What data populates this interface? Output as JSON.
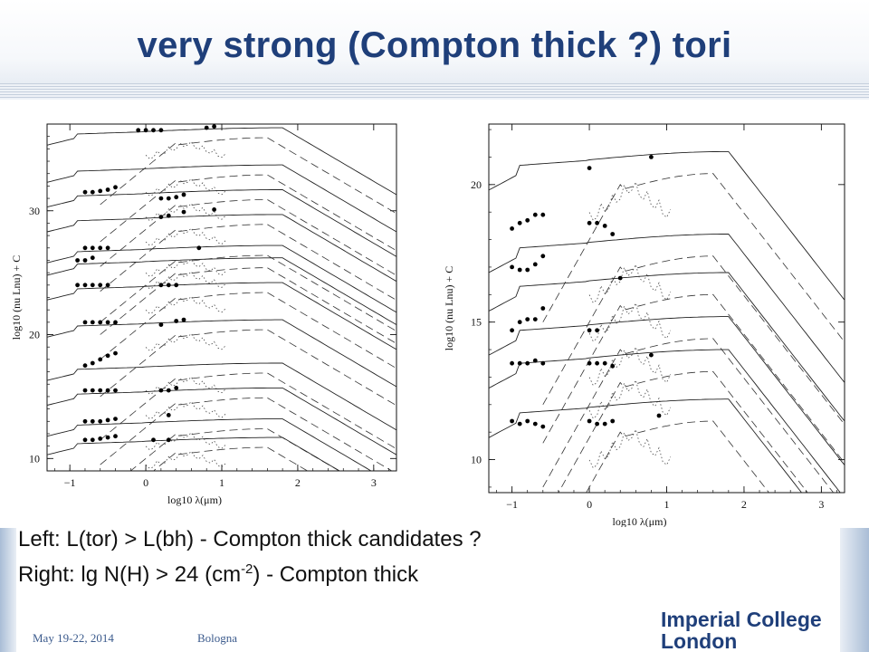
{
  "title": "very strong (Compton thick ?) tori",
  "caption": {
    "left_prefix": "Left: L(tor) > L(bh) - Compton thick candidates ?",
    "right_prefix": "Right: lg N(H) > 24 (cm",
    "right_exp": "-2",
    "right_suffix": ") - Compton thick"
  },
  "footer": {
    "date": "May 19-22, 2014",
    "place": "Bologna"
  },
  "logo": {
    "line1": "Imperial College",
    "line2": "London"
  },
  "colors": {
    "title": "#1f3f7a",
    "logo": "#1f3f7a",
    "footer": "#3b5a8c"
  },
  "chart_data": [
    {
      "type": "line",
      "panel": "left",
      "xlabel": "log10 λ(μm)",
      "ylabel": "log10 (nu Lnu) + C",
      "xlim": [
        -1.3,
        3.3
      ],
      "ylim": [
        9,
        37
      ],
      "xticks": [
        "-1",
        "0",
        "1",
        "2",
        "3"
      ],
      "yticks": [
        "10",
        "20",
        "30"
      ],
      "series_offsets": [
        36.5,
        33.5,
        31.5,
        29.5,
        27,
        26,
        24,
        21,
        17.5,
        15.5,
        13,
        11.5
      ],
      "photometry": [
        {
          "x": [
            -0.1,
            0.0,
            0.1,
            0.2,
            0.8,
            0.9
          ],
          "dy": [
            0,
            0,
            0,
            0,
            0.2,
            0.3
          ]
        },
        {
          "x": [
            0.2,
            0.3,
            0.4,
            0.5
          ],
          "dy": [
            -2.5,
            -2.5,
            -2.4,
            -2.2
          ]
        },
        {
          "x": [
            -0.8,
            -0.7,
            -0.6,
            -0.5,
            -0.4
          ],
          "dy": [
            0,
            0,
            0.1,
            0.2,
            0.4
          ]
        },
        {
          "x": [
            0.2,
            0.3,
            0.5,
            0.9
          ],
          "dy": [
            0,
            0.1,
            0.4,
            0.6
          ]
        },
        {
          "x": [
            -0.8,
            -0.7,
            -0.6,
            -0.5,
            0.7
          ],
          "dy": [
            0,
            0,
            0,
            0,
            0
          ]
        },
        {
          "x": [
            -0.9,
            -0.8,
            -0.7
          ],
          "dy": [
            0,
            0,
            0.2
          ]
        },
        {
          "x": [
            -0.9,
            -0.8,
            -0.7,
            -0.6,
            -0.5,
            0.2,
            0.3,
            0.4
          ],
          "dy": [
            0,
            0,
            0,
            0,
            0,
            0,
            0,
            0
          ]
        },
        {
          "x": [
            -0.8,
            -0.7,
            -0.6,
            -0.5,
            -0.4,
            0.2,
            0.4,
            0.5
          ],
          "dy": [
            0,
            0,
            0,
            0,
            0,
            -0.2,
            0.1,
            0.2
          ]
        },
        {
          "x": [
            -0.8,
            -0.7,
            -0.6,
            -0.5,
            -0.4
          ],
          "dy": [
            0,
            0.2,
            0.5,
            0.8,
            1.0
          ]
        },
        {
          "x": [
            -0.8,
            -0.7,
            -0.6,
            -0.5,
            -0.4,
            0.2,
            0.3,
            0.4
          ],
          "dy": [
            0,
            0,
            0,
            0,
            0,
            0,
            0,
            0.2
          ]
        },
        {
          "x": [
            -0.8,
            -0.7,
            -0.6,
            -0.5,
            -0.4,
            0.3
          ],
          "dy": [
            0,
            0,
            0,
            0.1,
            0.2,
            0.5
          ]
        },
        {
          "x": [
            -0.8,
            -0.7,
            -0.6,
            -0.5,
            -0.4,
            0.1,
            0.3
          ],
          "dy": [
            0,
            0,
            0.1,
            0.2,
            0.3,
            0,
            0
          ]
        }
      ]
    },
    {
      "type": "line",
      "panel": "right",
      "xlabel": "log10 λ(μm)",
      "ylabel": "log10 (nu Lnu) + C",
      "xlim": [
        -1.3,
        3.3
      ],
      "ylim": [
        8.8,
        22.2
      ],
      "xticks": [
        "-1",
        "0",
        "1",
        "2",
        "3"
      ],
      "yticks": [
        "10",
        "15",
        "20"
      ],
      "series_offsets": [
        21,
        18,
        16.6,
        15,
        13.8,
        12
      ],
      "photometry": [
        {
          "x": [
            0.0,
            0.8
          ],
          "dy": [
            -0.4,
            0
          ]
        },
        {
          "x": [
            -1.0,
            -0.9,
            -0.8,
            -0.7,
            -0.6,
            0.0,
            0.1,
            0.2,
            0.3
          ],
          "dy": [
            0.4,
            0.6,
            0.7,
            0.9,
            0.9,
            0.6,
            0.6,
            0.5,
            0.2
          ]
        },
        {
          "x": [
            -1.0,
            -0.9,
            -0.8,
            -0.7,
            -0.6,
            0.0,
            0.1,
            0.4
          ],
          "dy": [
            0.4,
            0.3,
            0.3,
            0.5,
            0.8,
            -1.9,
            -1.9,
            0
          ]
        },
        {
          "x": [
            -1.0,
            -0.9,
            -0.8,
            -0.7,
            -0.6
          ],
          "dy": [
            -0.3,
            0,
            0.1,
            0.1,
            0.5
          ]
        },
        {
          "x": [
            -1.0,
            -0.9,
            -0.8,
            -0.7,
            -0.6,
            0.0,
            0.1,
            0.2,
            0.3,
            0.8
          ],
          "dy": [
            -0.3,
            -0.3,
            -0.3,
            -0.2,
            -0.3,
            -0.3,
            -0.3,
            -0.3,
            -0.4,
            0
          ]
        },
        {
          "x": [
            -1.0,
            -0.9,
            -0.8,
            -0.7,
            -0.6,
            0.0,
            0.1,
            0.2,
            0.3,
            0.9
          ],
          "dy": [
            -0.6,
            -0.7,
            -0.6,
            -0.7,
            -0.8,
            -0.6,
            -0.7,
            -0.7,
            -0.6,
            -0.4
          ]
        }
      ]
    }
  ]
}
